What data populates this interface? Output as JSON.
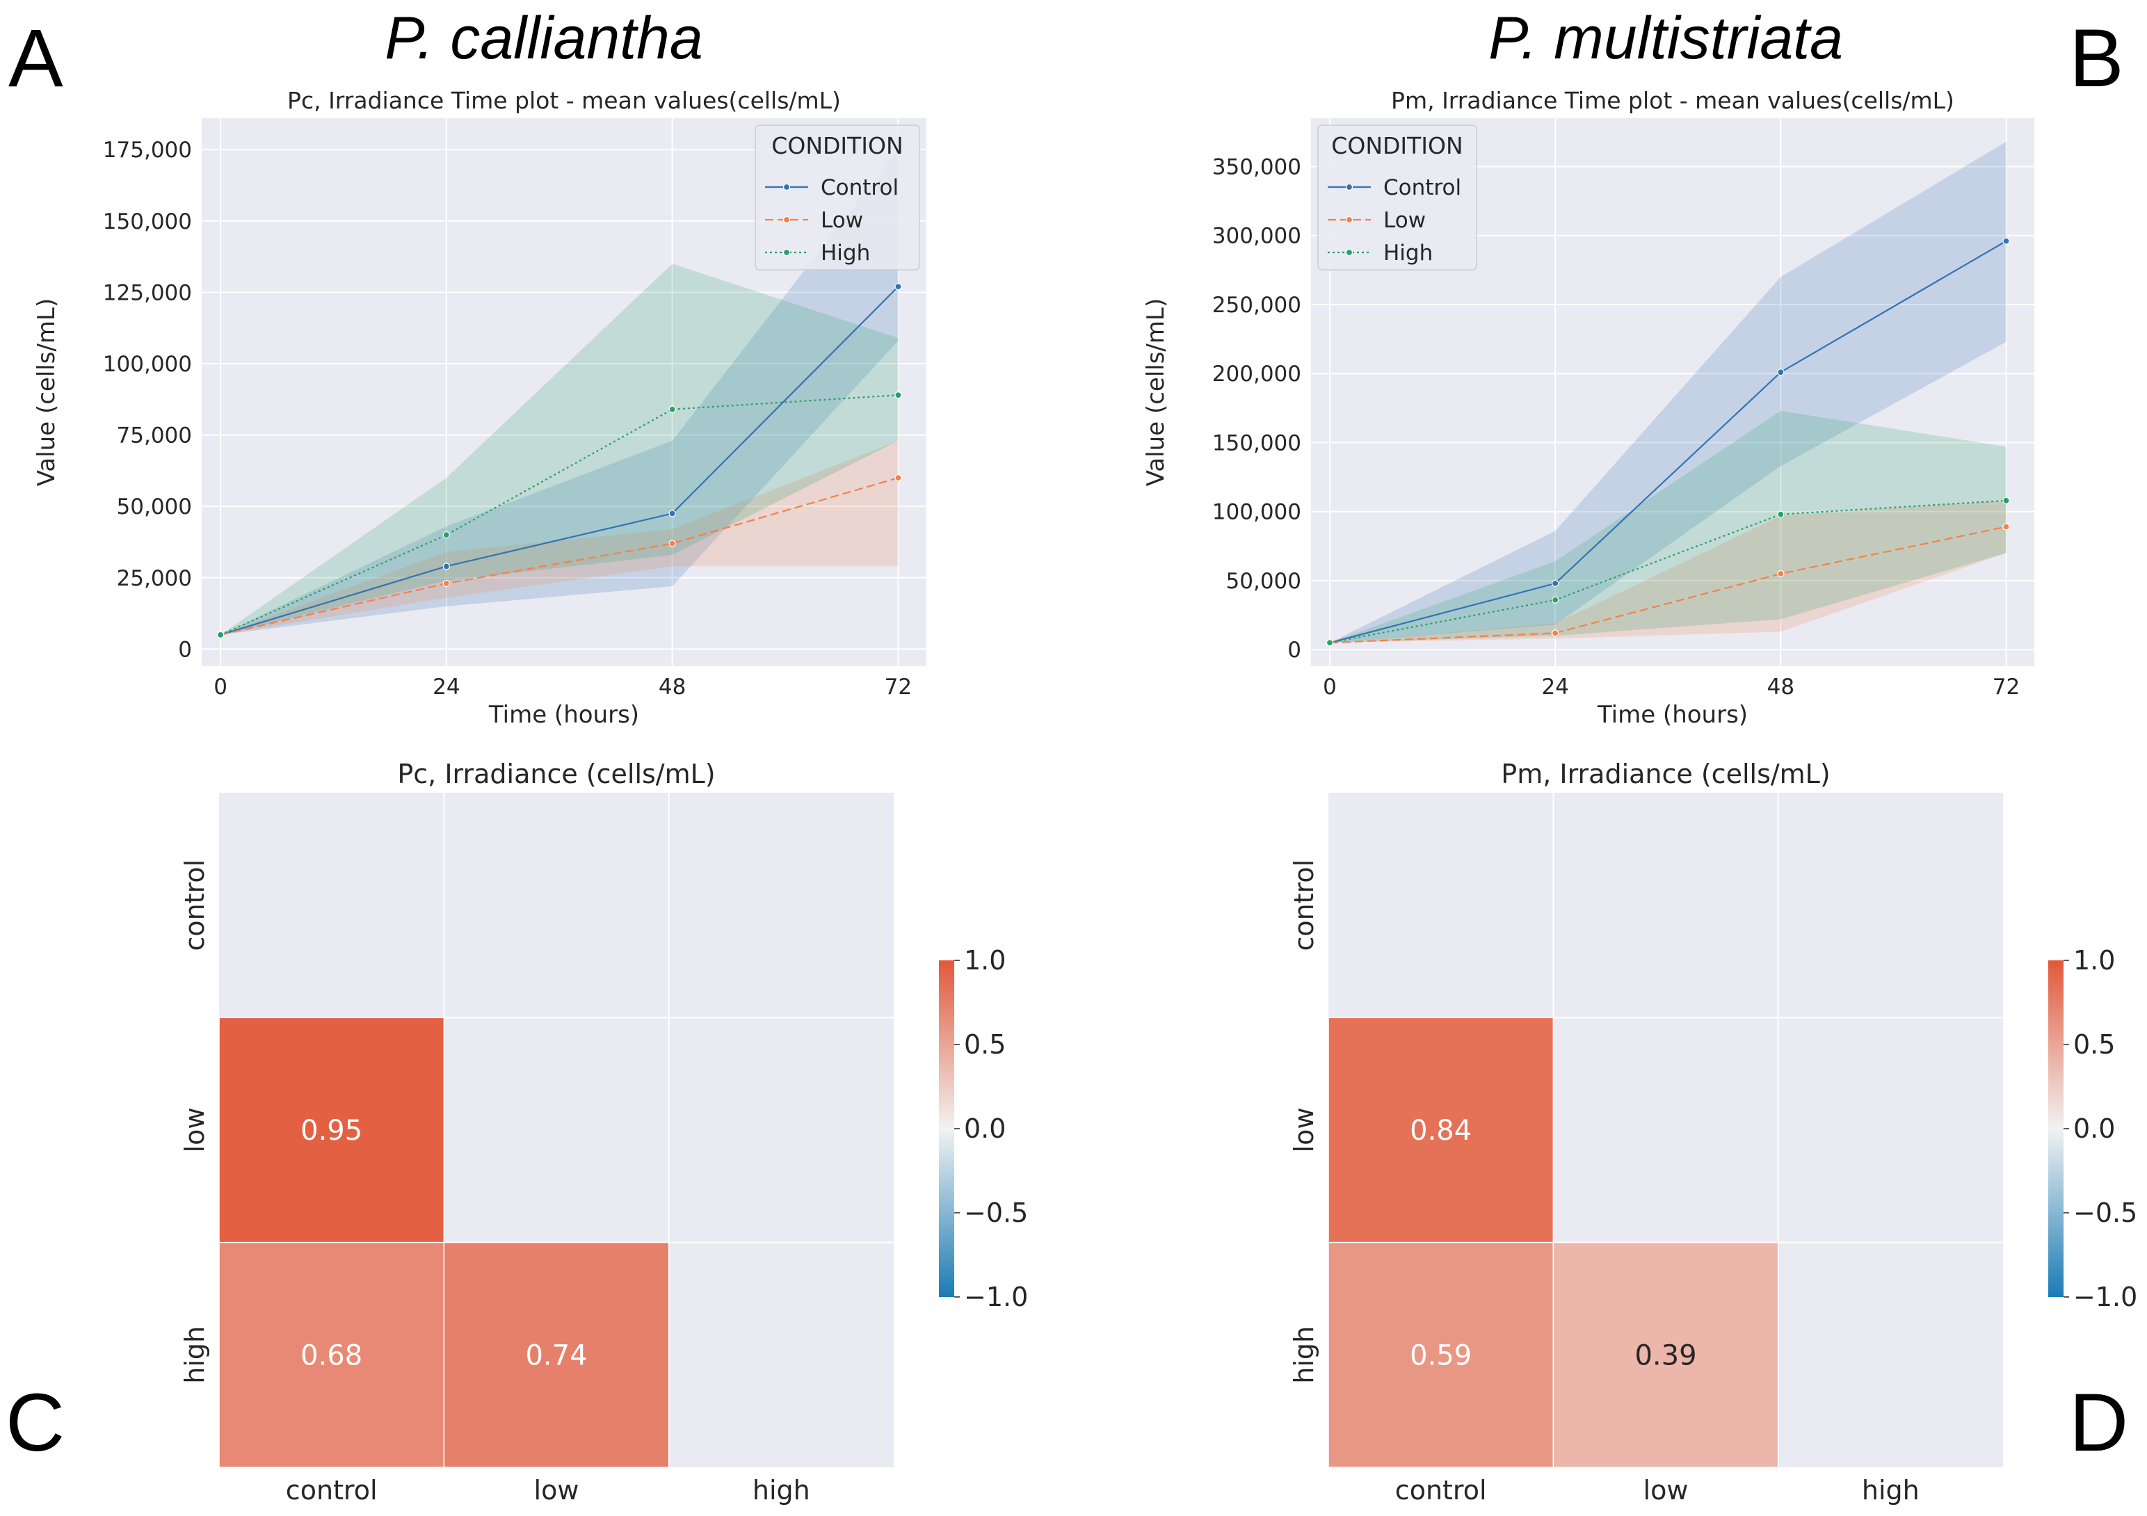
{
  "panels": {
    "a": "A",
    "b": "B",
    "c": "C",
    "d": "D"
  },
  "species": {
    "left": "P. calliantha",
    "right": "P. multistriata"
  },
  "colors": {
    "control": "#3274b3",
    "low": "#f2824c",
    "high": "#28a06a",
    "plot_bg": "#eaeaf2",
    "grid": "#ffffff",
    "neg": "#1a7bb5",
    "pos": "#e2583a"
  },
  "chart_data": [
    {
      "id": "pc_line",
      "type": "line",
      "title": "Pc, Irradiance Time plot - mean values(cells/mL)",
      "xlabel": "Time (hours)",
      "ylabel": "Value (cells/mL)",
      "x": [
        0,
        24,
        48,
        72
      ],
      "xticks": [
        "0",
        "24",
        "48",
        "72"
      ],
      "xlim": [
        -2,
        75
      ],
      "ylim": [
        -6000,
        186000
      ],
      "yticks": [
        0,
        25000,
        50000,
        75000,
        100000,
        125000,
        150000,
        175000
      ],
      "ytick_labels": [
        "0",
        "25,000",
        "50,000",
        "75,000",
        "100,000",
        "125,000",
        "150,000",
        "175,000"
      ],
      "legend_title": "CONDITION",
      "legend_position": "top-right",
      "series": [
        {
          "name": "Control",
          "key": "control",
          "values": [
            5000,
            29000,
            47500,
            127000
          ],
          "lower": [
            5000,
            15000,
            22000,
            108000
          ],
          "upper": [
            5000,
            43000,
            73000,
            175000
          ]
        },
        {
          "name": "Low",
          "key": "low",
          "values": [
            5000,
            23000,
            37000,
            60000
          ],
          "lower": [
            5000,
            18000,
            29000,
            29000
          ],
          "upper": [
            5000,
            34000,
            42000,
            73000
          ]
        },
        {
          "name": "High",
          "key": "high",
          "values": [
            5000,
            40000,
            84000,
            89000
          ],
          "lower": [
            5000,
            24000,
            33000,
            73000
          ],
          "upper": [
            5000,
            60000,
            135000,
            109000
          ]
        }
      ]
    },
    {
      "id": "pm_line",
      "type": "line",
      "title": "Pm, Irradiance Time plot - mean values(cells/mL)",
      "xlabel": "Time (hours)",
      "ylabel": "Value (cells/mL)",
      "x": [
        0,
        24,
        48,
        72
      ],
      "xticks": [
        "0",
        "24",
        "48",
        "72"
      ],
      "xlim": [
        -2,
        75
      ],
      "ylim": [
        -12000,
        385000
      ],
      "yticks": [
        0,
        50000,
        100000,
        150000,
        200000,
        250000,
        300000,
        350000
      ],
      "ytick_labels": [
        "0",
        "50,000",
        "100,000",
        "150,000",
        "200,000",
        "250,000",
        "300,000",
        "350,000"
      ],
      "legend_title": "CONDITION",
      "legend_position": "top-left",
      "series": [
        {
          "name": "Control",
          "key": "control",
          "values": [
            5000,
            48000,
            201000,
            296000
          ],
          "lower": [
            5000,
            18000,
            133000,
            223000
          ],
          "upper": [
            5000,
            86000,
            270000,
            368000
          ]
        },
        {
          "name": "Low",
          "key": "low",
          "values": [
            5000,
            12000,
            55000,
            89000
          ],
          "lower": [
            5000,
            8000,
            13000,
            70000
          ],
          "upper": [
            5000,
            19000,
            97000,
            108000
          ]
        },
        {
          "name": "High",
          "key": "high",
          "values": [
            5000,
            36000,
            98000,
            108000
          ],
          "lower": [
            5000,
            10000,
            22000,
            70000
          ],
          "upper": [
            5000,
            64000,
            173000,
            147000
          ]
        }
      ]
    },
    {
      "id": "pc_heat",
      "type": "heatmap",
      "title": "Pc, Irradiance (cells/mL)",
      "labels": [
        "control",
        "low",
        "high"
      ],
      "values": [
        [
          null,
          null,
          null
        ],
        [
          0.95,
          null,
          null
        ],
        [
          0.68,
          0.74,
          null
        ]
      ],
      "display": [
        [
          "",
          "",
          ""
        ],
        [
          "0.95",
          "",
          ""
        ],
        [
          "0.68",
          "0.74",
          ""
        ]
      ],
      "vmin": -1.0,
      "vmax": 1.0,
      "cbar_ticks": [
        1.0,
        0.5,
        0.0,
        -0.5,
        -1.0
      ],
      "cbar_labels": [
        "1.0",
        "0.5",
        "0.0",
        "−0.5",
        "−1.0"
      ]
    },
    {
      "id": "pm_heat",
      "type": "heatmap",
      "title": "Pm, Irradiance (cells/mL)",
      "labels": [
        "control",
        "low",
        "high"
      ],
      "values": [
        [
          null,
          null,
          null
        ],
        [
          0.84,
          null,
          null
        ],
        [
          0.59,
          0.39,
          null
        ]
      ],
      "display": [
        [
          "",
          "",
          ""
        ],
        [
          "0.84",
          "",
          ""
        ],
        [
          "0.59",
          "0.39",
          ""
        ]
      ],
      "vmin": -1.0,
      "vmax": 1.0,
      "cbar_ticks": [
        1.0,
        0.5,
        0.0,
        -0.5,
        -1.0
      ],
      "cbar_labels": [
        "1.0",
        "0.5",
        "0.0",
        "−0.5",
        "−1.0"
      ]
    }
  ]
}
